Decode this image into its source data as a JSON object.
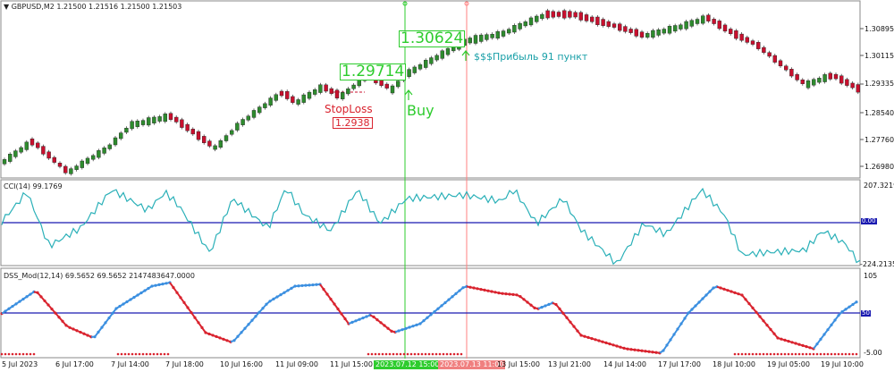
{
  "price_pane": {
    "title": "GBPUSD,M2  1.21500 1.21516 1.21500 1.21503",
    "y_axis": [
      "1.30895",
      "1.30115",
      "1.29335",
      "1.28540",
      "1.27760",
      "1.26980"
    ],
    "buy_marker": {
      "price": "1.30624",
      "label": "Buy"
    },
    "entry_marker": {
      "price": "1.29714"
    },
    "stoploss": {
      "label": "StopLoss",
      "price": "1.2938"
    },
    "profit_text": "$$$Прибыль 91 пункт"
  },
  "cci_pane": {
    "title": "CCI(14) 99.1769",
    "y_axis_top": "207.3219",
    "y_axis_zero": "0.00",
    "y_axis_bottom": "-224.2135"
  },
  "dss_pane": {
    "title": "DSS_Mod(12,14) 69.5652 69.5652 2147483647.0000",
    "y_axis_top": "105",
    "y_axis_mid": "50",
    "y_axis_bottom": "-5.00"
  },
  "time_axis": {
    "labels": [
      "5 Jul 2023",
      "6 Jul 17:00",
      "7 Jul 14:00",
      "7 Jul 18:00",
      "10 Jul 16:00",
      "11 Jul 09:00",
      "11 Jul 15:00",
      "2023.07.12 15:00",
      "2023.07.13 11:00",
      "13 Jul 15:00",
      "13 Jul 21:00",
      "14 Jul 14:00",
      "17 Jul 17:00",
      "18 Jul 10:00",
      "19 Jul 05:00",
      "19 Jul 10:00"
    ],
    "highlight_buy": "2023.07.12 15:00",
    "highlight_exit": "2023.07.13 11:00"
  },
  "colors": {
    "bull_candle": "#2e8b2e",
    "bear_candle": "#c8102e",
    "cci_line": "#2ab0b8",
    "dss_up": "#3b8fe0",
    "dss_down": "#d9232e",
    "level_line": "#1919b0",
    "buy_vline": "#2ecc2e",
    "exit_vline": "#ff8080"
  }
}
